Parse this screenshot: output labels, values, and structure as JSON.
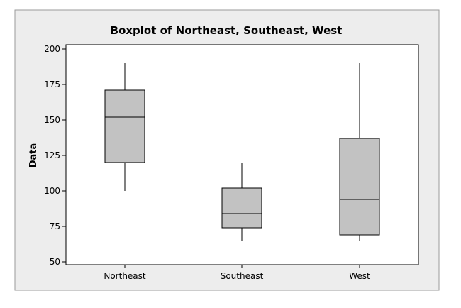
{
  "chart_data": {
    "type": "boxplot",
    "title": "Boxplot of Northeast, Southeast, West",
    "xlabel": "",
    "ylabel": "Data",
    "ylim": [
      48,
      203
    ],
    "yticks": [
      50,
      75,
      100,
      125,
      150,
      175,
      200
    ],
    "categories": [
      "Northeast",
      "Southeast",
      "West"
    ],
    "boxes": [
      {
        "category": "Northeast",
        "min": 100,
        "q1": 120,
        "median": 152,
        "q3": 171,
        "max": 190
      },
      {
        "category": "Southeast",
        "min": 65,
        "q1": 74,
        "median": 84,
        "q3": 102,
        "max": 120
      },
      {
        "category": "West",
        "min": 65,
        "q1": 69,
        "median": 94,
        "q3": 137,
        "max": 190
      }
    ],
    "grid": false,
    "colors": {
      "background": "#ededed",
      "plot": "#ffffff",
      "box": "#c2c2c2",
      "stroke": "#000000"
    }
  }
}
